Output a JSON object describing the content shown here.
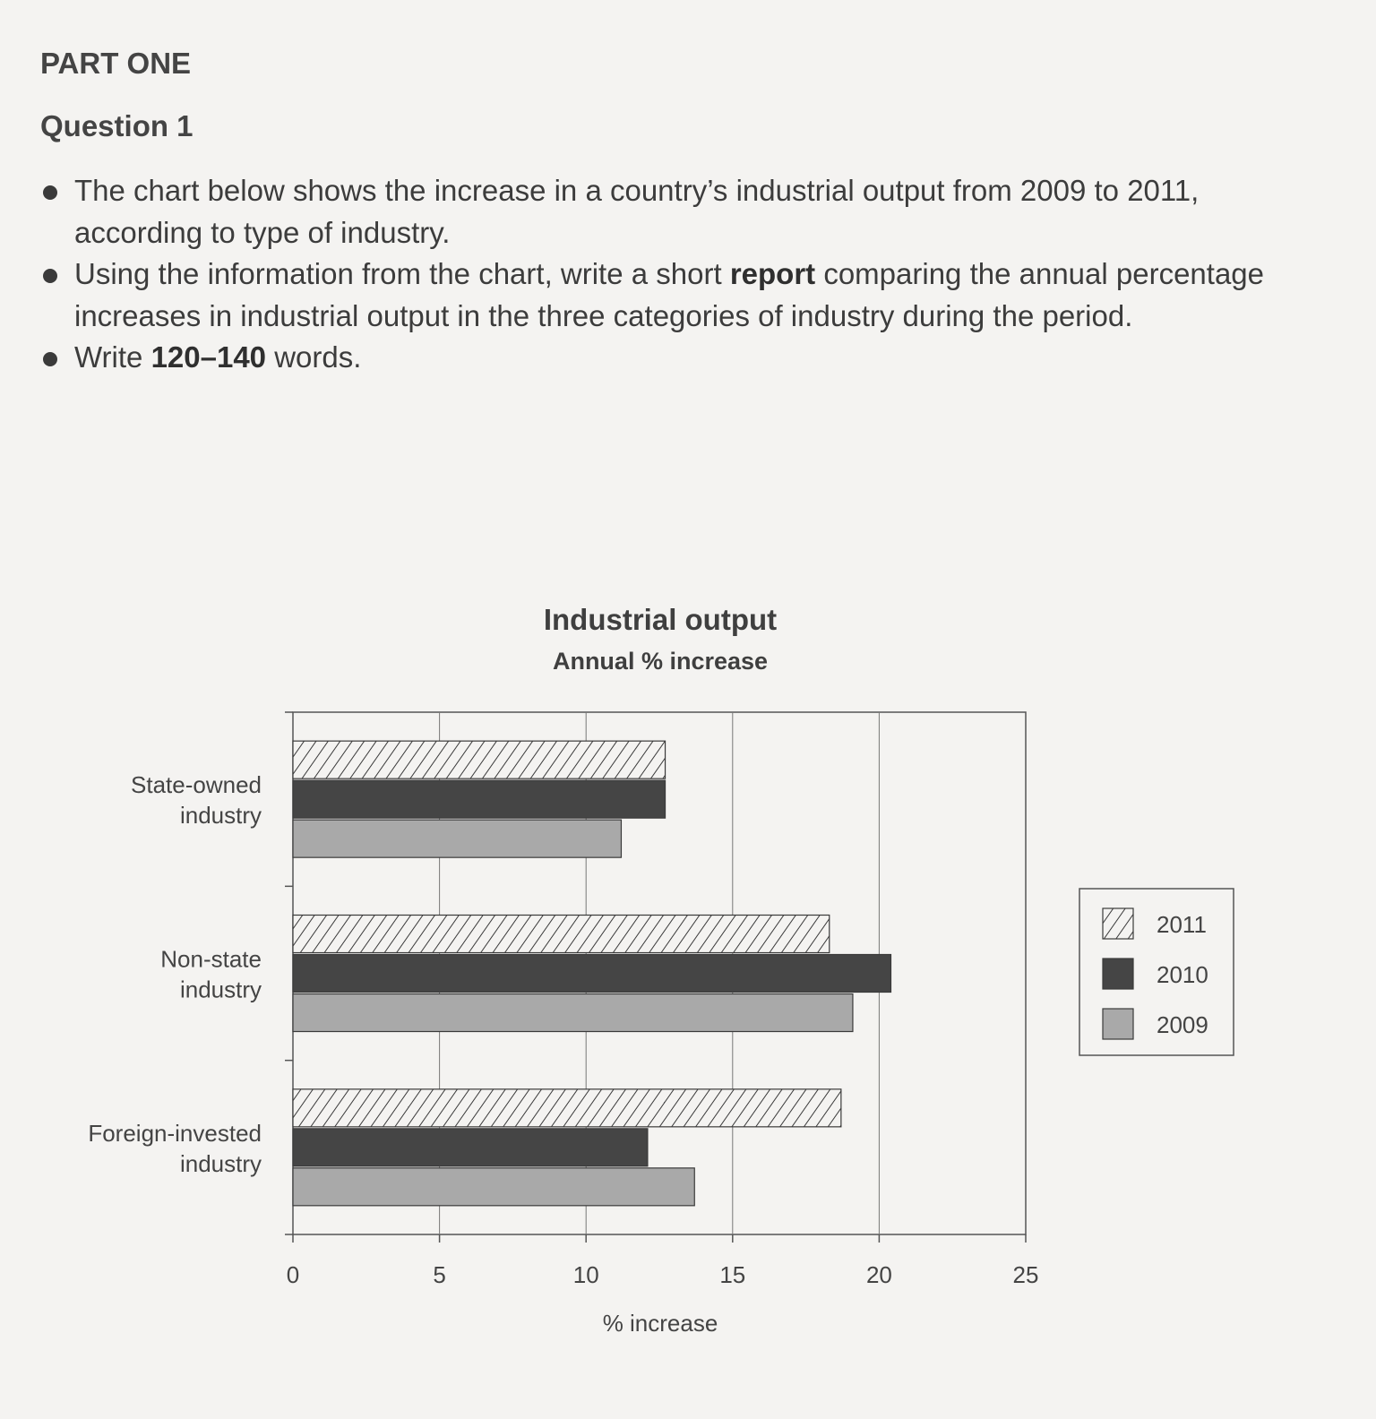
{
  "header": {
    "part": "PART ONE",
    "question": "Question 1"
  },
  "instructions": [
    {
      "segments": [
        {
          "text": "The chart below shows the increase in a country’s industrial output from 2009 to 2011, according to type of industry.",
          "bold": false
        }
      ]
    },
    {
      "segments": [
        {
          "text": "Using the information from the chart, write a short ",
          "bold": false
        },
        {
          "text": "report",
          "bold": true
        },
        {
          "text": " comparing the annual percentage increases in industrial output in the three categories of industry during the period.",
          "bold": false
        }
      ]
    },
    {
      "segments": [
        {
          "text": "Write ",
          "bold": false
        },
        {
          "text": "120–140",
          "bold": true
        },
        {
          "text": " words.",
          "bold": false
        }
      ]
    }
  ],
  "chart_data": {
    "type": "bar",
    "orientation": "horizontal",
    "title": "Industrial output",
    "subtitle": "Annual % increase",
    "xlabel": "% increase",
    "ylabel": "",
    "xlim": [
      0,
      25
    ],
    "xticks": [
      "0",
      "5",
      "10",
      "15",
      "20",
      "25"
    ],
    "categories": [
      [
        "State-owned",
        "industry"
      ],
      [
        "Non-state",
        "industry"
      ],
      [
        "Foreign-invested",
        "industry"
      ]
    ],
    "series": [
      {
        "name": "2011",
        "values": [
          12.7,
          18.3,
          18.7
        ],
        "fill": "hatched"
      },
      {
        "name": "2010",
        "values": [
          12.7,
          20.4,
          12.1
        ],
        "fill": "#454545"
      },
      {
        "name": "2009",
        "values": [
          11.2,
          19.1,
          13.7
        ],
        "fill": "#a9a9a9"
      }
    ],
    "grid": true,
    "legend": "right"
  }
}
